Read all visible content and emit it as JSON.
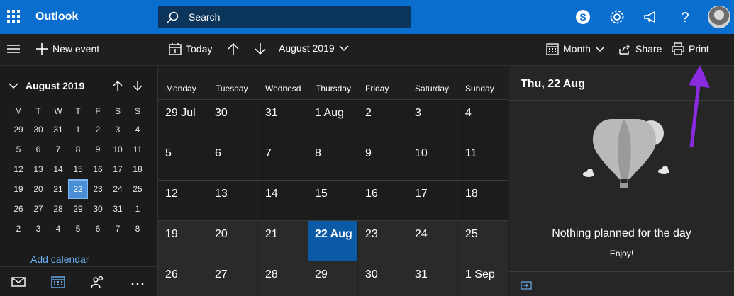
{
  "app": {
    "title": "Outlook"
  },
  "search": {
    "placeholder": "Search"
  },
  "commands": {
    "new_event": "New event",
    "today": "Today",
    "period": "August 2019",
    "view": "Month",
    "share": "Share",
    "print": "Print"
  },
  "mini_calendar": {
    "title": "August 2019",
    "weekdays": [
      "M",
      "T",
      "W",
      "T",
      "F",
      "S",
      "S"
    ],
    "days": [
      [
        "29",
        "30",
        "31",
        "1",
        "2",
        "3",
        "4"
      ],
      [
        "5",
        "6",
        "7",
        "8",
        "9",
        "10",
        "11"
      ],
      [
        "12",
        "13",
        "14",
        "15",
        "16",
        "17",
        "18"
      ],
      [
        "19",
        "20",
        "21",
        "22",
        "23",
        "24",
        "25"
      ],
      [
        "26",
        "27",
        "28",
        "29",
        "30",
        "31",
        "1"
      ],
      [
        "2",
        "3",
        "4",
        "5",
        "6",
        "7",
        "8"
      ]
    ],
    "selected": "22"
  },
  "left_pane": {
    "add_calendar": "Add calendar"
  },
  "month_view": {
    "weekdays": [
      "Monday",
      "Tuesday",
      "Wednesday",
      "Thursday",
      "Friday",
      "Saturday",
      "Sunday"
    ],
    "weeks": [
      [
        "29 Jul",
        "30",
        "31",
        "1 Aug",
        "2",
        "3",
        "4"
      ],
      [
        "5",
        "6",
        "7",
        "8",
        "9",
        "10",
        "11"
      ],
      [
        "12",
        "13",
        "14",
        "15",
        "16",
        "17",
        "18"
      ],
      [
        "19",
        "20",
        "21",
        "22 Aug",
        "23",
        "24",
        "25"
      ],
      [
        "26",
        "27",
        "28",
        "29",
        "30",
        "31",
        "1 Sep"
      ]
    ]
  },
  "day_panel": {
    "title": "Thu, 22 Aug",
    "empty_message": "Nothing planned for the day",
    "empty_sub": "Enjoy!"
  },
  "colors": {
    "brand": "#0a6ecf",
    "selected_day": "#0b5aa6",
    "link": "#6ab0f3",
    "annotation_arrow": "#8a2be2"
  }
}
